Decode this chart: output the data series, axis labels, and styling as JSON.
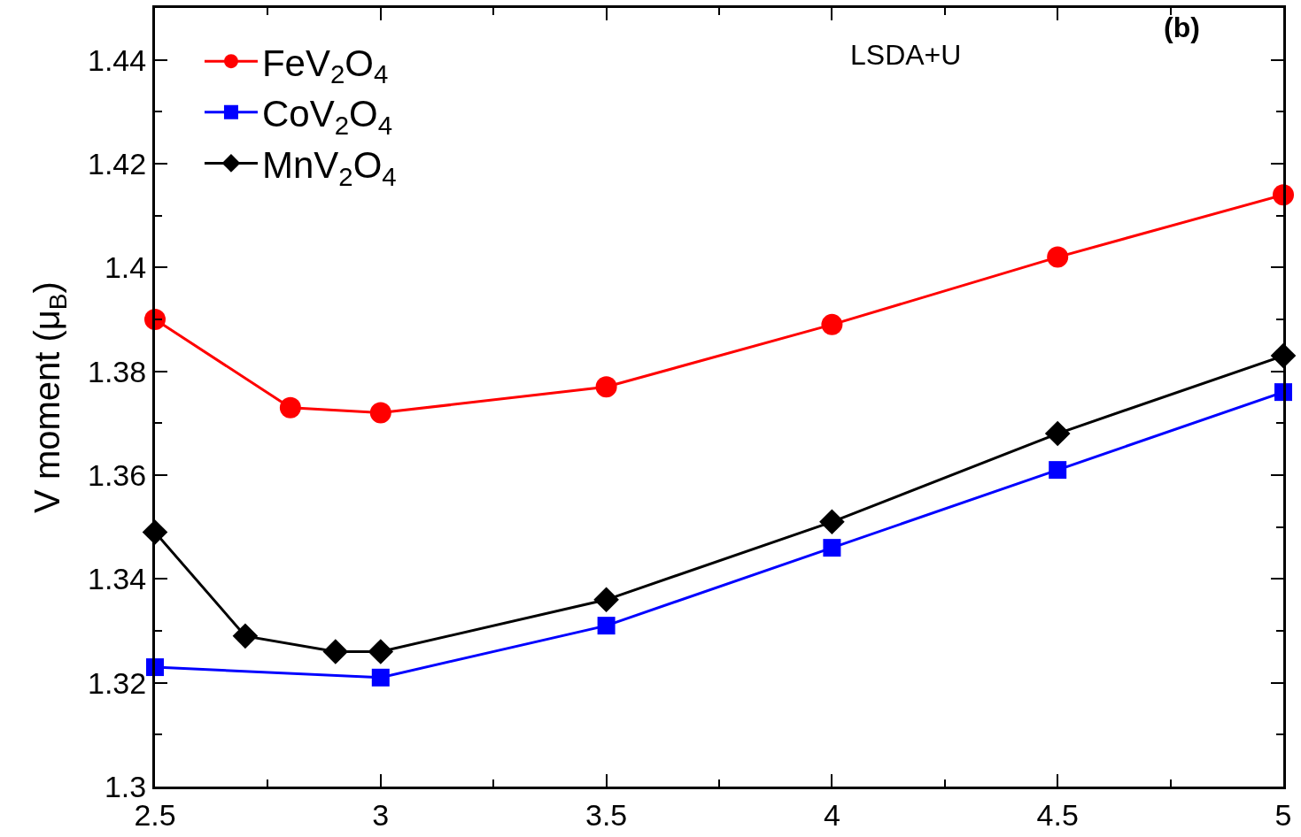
{
  "chart_data": {
    "type": "line",
    "ylabel": "V moment (μ$_{B}$)",
    "annotations": [
      "(b)",
      "LSDA+U"
    ],
    "series": [
      {
        "name": "FeV$_{2}$O$_{4}$",
        "color": "#ff0000",
        "marker": "circle",
        "x": [
          2.5,
          2.8,
          3,
          3.5,
          4,
          4.5,
          5
        ],
        "values": [
          1.39,
          1.373,
          1.372,
          1.377,
          1.389,
          1.402,
          1.414
        ]
      },
      {
        "name": "CoV$_{2}$O$_{4}$",
        "color": "#0000ff",
        "marker": "square",
        "x": [
          2.5,
          3,
          3.5,
          4,
          4.5,
          5
        ],
        "values": [
          1.323,
          1.321,
          1.331,
          1.346,
          1.361,
          1.376
        ]
      },
      {
        "name": "MnV$_{2}$O$_{4}$",
        "color": "#000000",
        "marker": "diamond",
        "x": [
          2.5,
          2.7,
          2.9,
          3,
          3.5,
          4,
          4.5,
          5
        ],
        "values": [
          1.349,
          1.329,
          1.326,
          1.326,
          1.336,
          1.351,
          1.368,
          1.383
        ]
      }
    ],
    "xlim": [
      2.5,
      5
    ],
    "xticks": [
      2.5,
      3,
      3.5,
      4,
      4.5,
      5
    ],
    "ylim": [
      1.3,
      1.45
    ],
    "yticks": [
      1.3,
      1.32,
      1.34,
      1.36,
      1.38,
      1.4,
      1.42,
      1.44
    ],
    "legend": "top left",
    "line_style": "solid"
  }
}
